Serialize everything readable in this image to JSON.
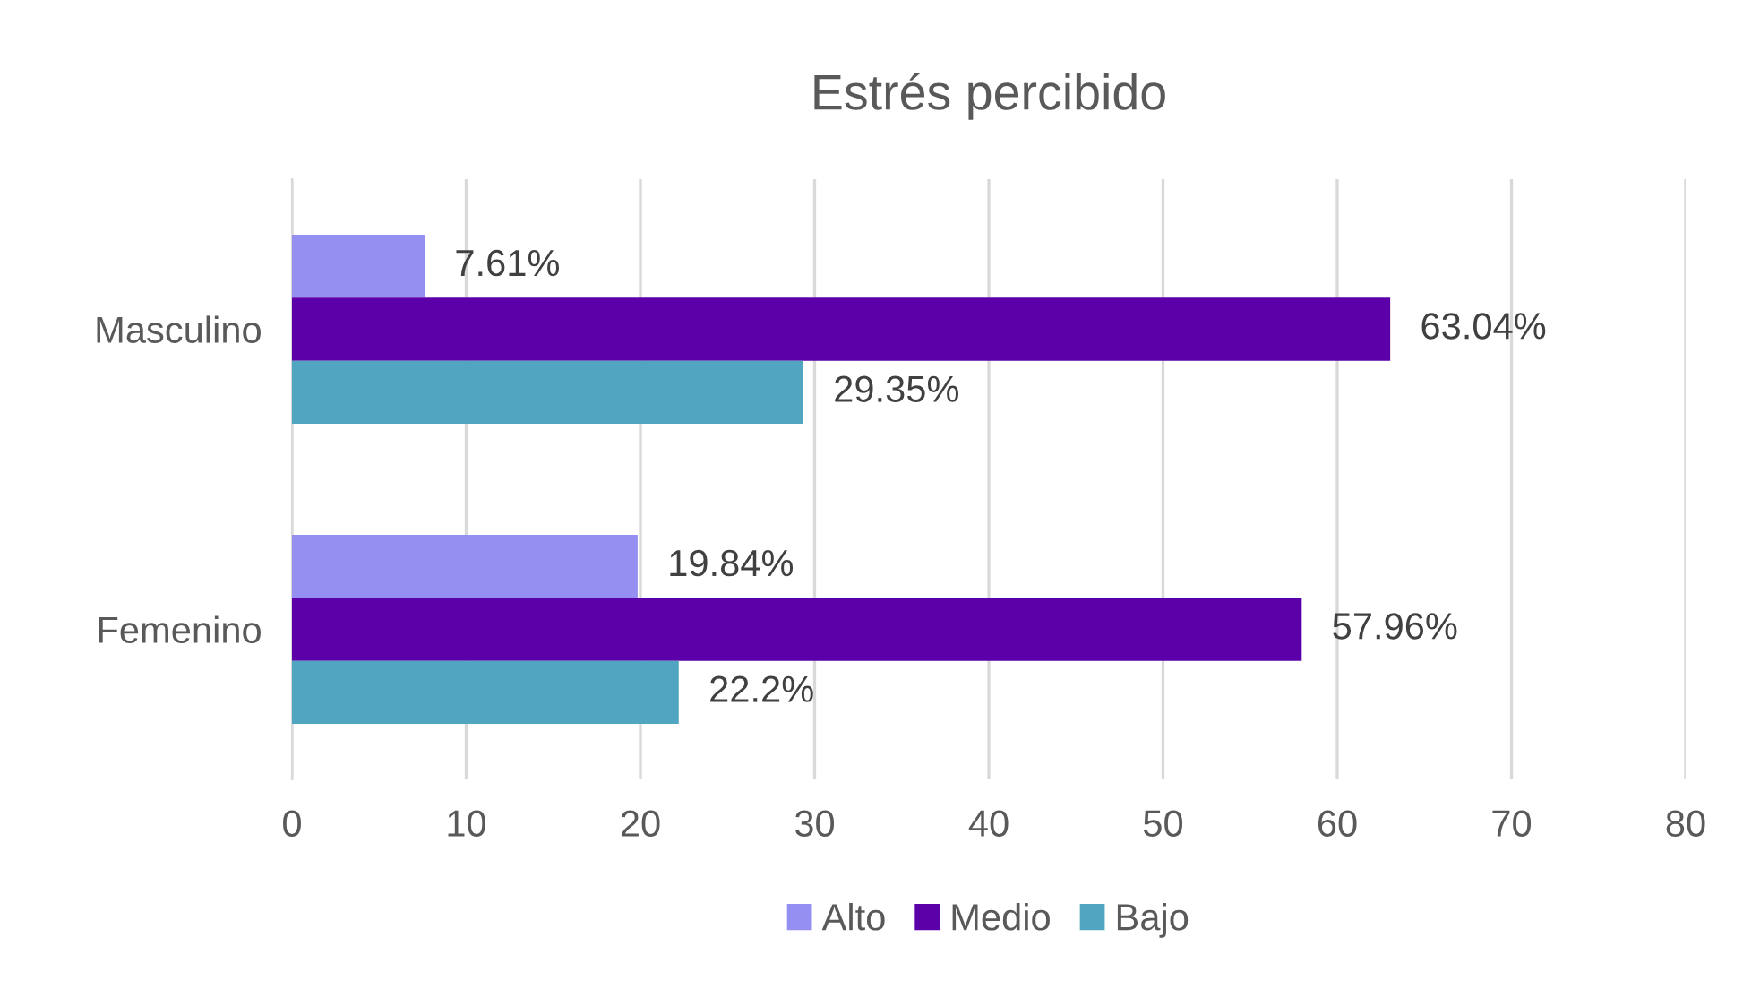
{
  "chart_data": {
    "type": "bar",
    "orientation": "horizontal",
    "title": "Estrés percibido",
    "categories": [
      "Masculino",
      "Femenino"
    ],
    "series": [
      {
        "name": "Alto",
        "color": "#968ff2",
        "values": [
          7.61,
          19.84
        ],
        "value_labels": [
          "7.61%",
          "19.84%"
        ]
      },
      {
        "name": "Medio",
        "color": "#5b00a8",
        "values": [
          63.04,
          57.96
        ],
        "value_labels": [
          "63.04%",
          "57.96%"
        ]
      },
      {
        "name": "Bajo",
        "color": "#52a5c0",
        "values": [
          29.35,
          22.2
        ],
        "value_labels": [
          "29.35%",
          "22.2%"
        ]
      }
    ],
    "xlim": [
      0,
      80
    ],
    "xticks": [
      0,
      10,
      20,
      30,
      40,
      50,
      60,
      70,
      80
    ],
    "grid": "x",
    "legend": "bottom"
  }
}
